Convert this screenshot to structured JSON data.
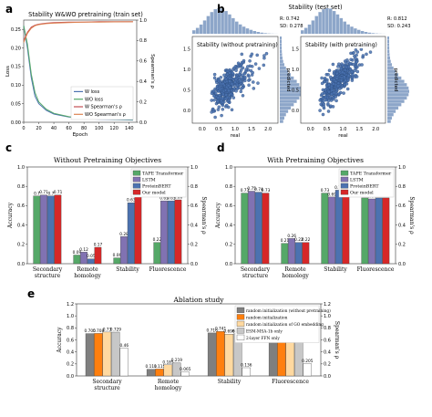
{
  "panel_labels": {
    "a": "a",
    "b": "b",
    "c": "c",
    "d": "d",
    "e": "e"
  },
  "chart_data": [
    {
      "id": "a",
      "type": "line",
      "title": "Stability W&WO pretraining (train set)",
      "xlabel": "Epoch",
      "ylabel_left": "Loss",
      "ylabel_right": "Spearman's ρ",
      "xlim": [
        0,
        150
      ],
      "ylim_left": [
        0,
        0.275
      ],
      "ylim_right": [
        0,
        1.0
      ],
      "xticks": [
        0,
        20,
        40,
        60,
        80,
        100,
        120,
        140
      ],
      "yticks_left": [
        0.0,
        0.05,
        0.1,
        0.15,
        0.2,
        0.25
      ],
      "yticks_right": [
        0.0,
        0.2,
        0.4,
        0.6,
        0.8,
        1.0
      ],
      "legend": "lower-right",
      "series": [
        {
          "name": "W loss",
          "axis": "left",
          "color": "#4c72b0",
          "x": [
            0,
            5,
            10,
            15,
            20,
            30,
            40,
            60,
            80,
            100,
            120,
            145
          ],
          "y": [
            0.26,
            0.2,
            0.12,
            0.07,
            0.05,
            0.032,
            0.022,
            0.014,
            0.01,
            0.008,
            0.007,
            0.006
          ]
        },
        {
          "name": "WO loss",
          "axis": "left",
          "color": "#55a868",
          "x": [
            0,
            5,
            10,
            15,
            20,
            30,
            40,
            60,
            80,
            100,
            120,
            145
          ],
          "y": [
            0.26,
            0.21,
            0.13,
            0.08,
            0.055,
            0.035,
            0.024,
            0.015,
            0.011,
            0.009,
            0.008,
            0.007
          ]
        },
        {
          "name": "W Spearman's ρ",
          "axis": "right",
          "color": "#c44e52",
          "x": [
            0,
            5,
            10,
            15,
            20,
            30,
            40,
            60,
            80,
            100,
            120,
            145
          ],
          "y": [
            0.8,
            0.88,
            0.93,
            0.95,
            0.96,
            0.97,
            0.975,
            0.98,
            0.98,
            0.985,
            0.985,
            0.985
          ]
        },
        {
          "name": "WO Spearman's ρ",
          "axis": "right",
          "color": "#dd8452",
          "x": [
            0,
            5,
            10,
            15,
            20,
            30,
            40,
            60,
            80,
            100,
            120,
            145
          ],
          "y": [
            0.78,
            0.87,
            0.92,
            0.945,
            0.955,
            0.965,
            0.97,
            0.975,
            0.98,
            0.98,
            0.982,
            0.983
          ]
        }
      ]
    },
    {
      "id": "b",
      "type": "scatter",
      "title": "Stability (test set)",
      "panels": [
        {
          "subtitle": "Stability (without pretraining)",
          "stat_r": "R: 0.742",
          "stat_sd": "SD: 0.278",
          "xlabel": "real",
          "ylabel": "predicted",
          "xticks": [
            "0.0",
            "0.5",
            "1.0",
            "1.5",
            "2.0"
          ],
          "yticks": [
            "0.0",
            "0.5",
            "1.0",
            "1.5"
          ],
          "xlim": [
            -0.3,
            2.3
          ],
          "ylim": [
            -0.3,
            1.8
          ],
          "slope": 0.62,
          "spread": 0.28,
          "color": "#2d4e7e"
        },
        {
          "subtitle": "Stability (with pretraining)",
          "stat_r": "R: 0.812",
          "stat_sd": "SD: 0.243",
          "xlabel": "real",
          "ylabel": "predicted",
          "xticks": [
            "0.0",
            "0.5",
            "1.0",
            "1.5",
            "2.0"
          ],
          "yticks": [
            "0.0",
            "0.5",
            "1.0",
            "1.5"
          ],
          "xlim": [
            -0.3,
            2.3
          ],
          "ylim": [
            -0.3,
            1.8
          ],
          "slope": 0.7,
          "spread": 0.24,
          "color": "#2d4e7e"
        }
      ]
    },
    {
      "id": "c",
      "type": "bar",
      "title": "Without Pretraining Objectives",
      "ylabel_left": "Accuracy",
      "ylabel_right": "Spearman's ρ",
      "ylim": [
        0,
        1.0
      ],
      "yticks": [
        0.0,
        0.2,
        0.4,
        0.6,
        0.8,
        1.0
      ],
      "categories": [
        "Secondary\nstructure",
        "Remote\nhomology",
        "Stability",
        "Fluorescence"
      ],
      "legend": "upper-right",
      "series": [
        {
          "name": "TAPE Transformer",
          "color": "#55a868",
          "values": [
            0.7,
            0.09,
            0.06,
            0.22
          ],
          "labels": [
            "0.7",
            "0.09",
            "0.06",
            "0.22"
          ]
        },
        {
          "name": "LSTM",
          "color": "#8172b2",
          "values": [
            0.71,
            0.12,
            0.28,
            0.65
          ],
          "labels": [
            "0.71",
            "0.12",
            "0.28",
            "0.65"
          ]
        },
        {
          "name": "ProteinBERT",
          "color": "#4c72b0",
          "values": [
            0.7,
            0.05,
            0.63,
            0.65
          ],
          "labels": [
            "0.7",
            "0.05",
            "0.63",
            "0.65"
          ]
        },
        {
          "name": "Our model",
          "color": "#d62728",
          "values": [
            0.71,
            0.17,
            0.74,
            0.66
          ],
          "labels": [
            "0.71",
            "0.17",
            "0.74",
            "0.66"
          ]
        }
      ]
    },
    {
      "id": "d",
      "type": "bar",
      "title": "With Pretraining Objectives",
      "ylabel_left": "Accuracy",
      "ylabel_right": "Spearman's ρ",
      "ylim": [
        0,
        1.0
      ],
      "yticks": [
        0.0,
        0.2,
        0.4,
        0.6,
        0.8,
        1.0
      ],
      "categories": [
        "Secondary\nstructure",
        "Remote\nhomology",
        "Stability",
        "Fluorescence"
      ],
      "legend": "upper-right",
      "series": [
        {
          "name": "TAPE Transformer",
          "color": "#55a868",
          "values": [
            0.73,
            0.21,
            0.73,
            0.68
          ],
          "labels": [
            "0.73",
            "0.21",
            "0.73",
            "0.68"
          ]
        },
        {
          "name": "LSTM",
          "color": "#8172b2",
          "values": [
            0.75,
            0.26,
            0.69,
            0.67
          ],
          "labels": [
            "0.75",
            "0.26",
            "0.69",
            "0.67"
          ]
        },
        {
          "name": "ProteinBERT",
          "color": "#4c72b0",
          "values": [
            0.74,
            0.22,
            0.76,
            0.68
          ],
          "labels": [
            "0.74",
            "0.22",
            "0.76",
            "0.68"
          ]
        },
        {
          "name": "Our model",
          "color": "#d62728",
          "values": [
            0.73,
            0.22,
            0.81,
            0.68
          ],
          "labels": [
            "0.73",
            "0.22",
            "0.81",
            "0.681"
          ]
        }
      ]
    },
    {
      "id": "e",
      "type": "bar",
      "title": "Ablation study",
      "ylabel_left": "Accuracy",
      "ylabel_right": "Spearman's ρ",
      "ylim": [
        0,
        1.2
      ],
      "yticks": [
        0.0,
        0.2,
        0.4,
        0.6,
        0.8,
        1.0,
        1.2
      ],
      "categories": [
        "Secondary\nstructure",
        "Remote\nhomology",
        "Stability",
        "Fluorescence"
      ],
      "legend": "upper-right",
      "series": [
        {
          "name": "random initialization (without pretraining)",
          "color": "#7f7f7f",
          "values": [
            0.705,
            0.111,
            0.716,
            0.595
          ],
          "labels": [
            "0.705",
            "0.111",
            "0.716",
            "0.595"
          ]
        },
        {
          "name": "random initialization",
          "color": "#ff7f0e",
          "values": [
            0.708,
            0.115,
            0.741,
            0.656
          ],
          "labels": [
            "0.708",
            "0.115",
            "0.741",
            "0.656"
          ]
        },
        {
          "name": "random initialization of GO embedding",
          "color": "#ffd9a0",
          "values": [
            0.73,
            0.185,
            0.696,
            0.63
          ],
          "labels": [
            "0.73",
            "0.185",
            "0.696",
            "0.63"
          ]
        },
        {
          "name": "ESM-MSA-1b only",
          "color": "#c7c7c7",
          "values": [
            0.729,
            0.219,
            0.701,
            0.603
          ],
          "labels": [
            "0.729",
            "0.219",
            "0.701",
            "0.603"
          ]
        },
        {
          "name": "2-layer FFN only",
          "color": "#ffffff",
          "values": [
            0.46,
            0.065,
            0.136,
            0.205
          ],
          "labels": [
            "0.46",
            "0.065",
            "0.136",
            "0.205"
          ]
        }
      ]
    }
  ]
}
